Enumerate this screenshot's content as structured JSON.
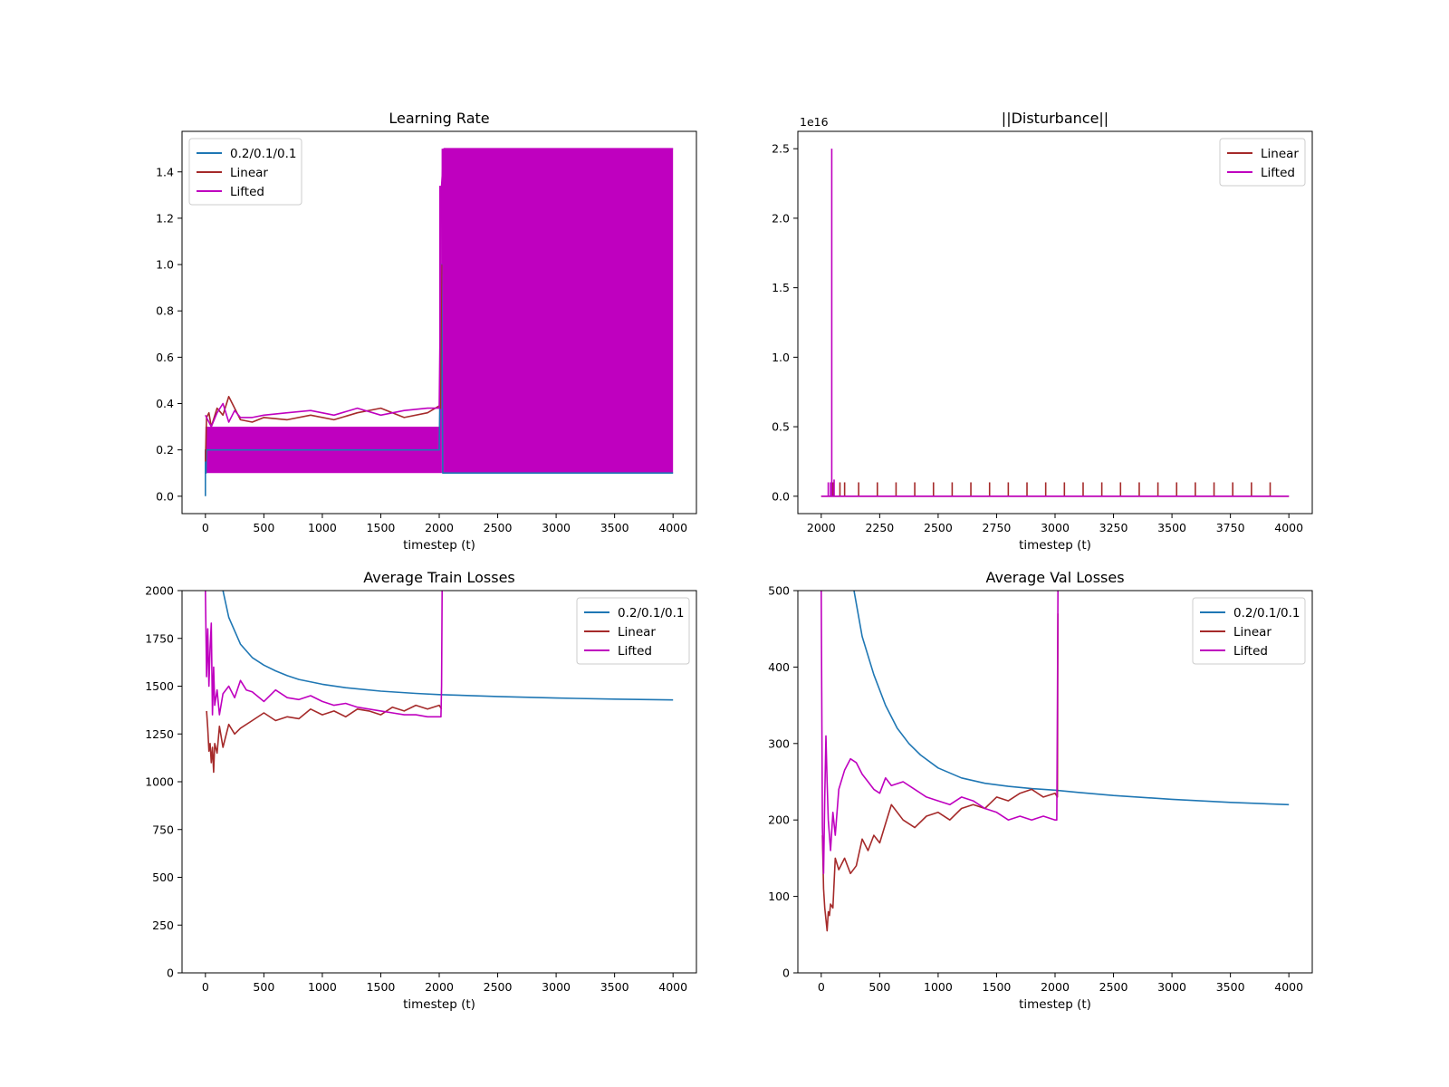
{
  "chart_data": [
    {
      "type": "line",
      "title": "Learning Rate",
      "xlabel": "timestep (t)",
      "ylabel": "",
      "xlim": [
        -200,
        4200
      ],
      "ylim": [
        -0.075,
        1.575
      ],
      "xticks": [
        "0",
        "500",
        "1000",
        "1500",
        "2000",
        "2500",
        "3000",
        "3500",
        "4000"
      ],
      "yticks": [
        "0.0",
        "0.2",
        "0.4",
        "0.6",
        "0.8",
        "1.0",
        "1.2",
        "1.4"
      ],
      "legend_position": "upper-left",
      "series": [
        {
          "name": "0.2/0.1/0.1",
          "color": "#1f77b4",
          "x": [
            0,
            0,
            5,
            10,
            2000,
            2020,
            2030,
            4000
          ],
          "y": [
            0.0,
            0.2,
            0.1,
            0.2,
            0.2,
            1.0,
            0.1,
            0.1
          ]
        },
        {
          "name": "Linear",
          "color": "#a52a2a",
          "x": [
            0,
            10,
            30,
            50,
            100,
            150,
            200,
            250,
            300,
            400,
            500,
            700,
            900,
            1100,
            1300,
            1500,
            1700,
            1900,
            2000,
            2010,
            2020
          ],
          "y": [
            0.15,
            0.34,
            0.36,
            0.3,
            0.38,
            0.35,
            0.43,
            0.38,
            0.33,
            0.32,
            0.34,
            0.33,
            0.35,
            0.33,
            0.36,
            0.38,
            0.34,
            0.36,
            0.39,
            0.38,
            1.0
          ]
        },
        {
          "name": "Lifted",
          "color": "#bf00bf",
          "x": [
            0,
            50,
            100,
            150,
            200,
            250,
            300,
            400,
            500,
            700,
            900,
            1100,
            1300,
            1500,
            1700,
            1900,
            2000,
            2020,
            2040,
            4000
          ],
          "y": [
            0.35,
            0.3,
            0.36,
            0.4,
            0.32,
            0.37,
            0.34,
            0.34,
            0.35,
            0.36,
            0.37,
            0.35,
            0.38,
            0.35,
            0.37,
            0.38,
            0.38,
            1.34,
            1.5,
            1.5
          ]
        }
      ],
      "band": {
        "series": "Lifted",
        "segments": [
          [
            0,
            2000,
            0.1,
            0.3
          ],
          [
            2000,
            2020,
            0.1,
            1.34
          ],
          [
            2020,
            4000,
            0.1,
            1.5
          ]
        ]
      }
    },
    {
      "type": "line",
      "title": "||Disturbance||",
      "xlabel": "timestep (t)",
      "ylabel": "",
      "offset_label": "1e16",
      "xlim": [
        1900,
        4100
      ],
      "ylim": [
        -0.125,
        2.625
      ],
      "xticks": [
        "2000",
        "2250",
        "2500",
        "2750",
        "3000",
        "3250",
        "3500",
        "3750",
        "4000"
      ],
      "yticks": [
        "0.0",
        "0.5",
        "1.0",
        "1.5",
        "2.0",
        "2.5"
      ],
      "legend_position": "upper-right",
      "series": [
        {
          "name": "Linear",
          "color": "#a52a2a",
          "x": [
            2000,
            4000
          ],
          "y": [
            0.0,
            0.0
          ],
          "spike_x": [
            2050,
            2080,
            2100,
            2160,
            2240,
            2320,
            2400,
            2480,
            2560,
            2640,
            2720,
            2800,
            2880,
            2960,
            3040,
            3120,
            3200,
            3280,
            3360,
            3440,
            3520,
            3600,
            3680,
            3760,
            3840,
            3920
          ],
          "spike_y": 0.1
        },
        {
          "name": "Lifted",
          "color": "#bf00bf",
          "x": [
            2000,
            4000
          ],
          "y": [
            0.0,
            0.0
          ],
          "spike_x": [
            2030,
            2040,
            2045,
            2055
          ],
          "spike_y": [
            0.1,
            0.1,
            2.5,
            0.12
          ]
        }
      ]
    },
    {
      "type": "line",
      "title": "Average Train Losses",
      "xlabel": "timestep (t)",
      "ylabel": "",
      "xlim": [
        -200,
        4200
      ],
      "ylim": [
        0,
        2000
      ],
      "xticks": [
        "0",
        "500",
        "1000",
        "1500",
        "2000",
        "2500",
        "3000",
        "3500",
        "4000"
      ],
      "yticks": [
        "0",
        "250",
        "500",
        "750",
        "1000",
        "1250",
        "1500",
        "1750",
        "2000"
      ],
      "legend_position": "upper-right",
      "series": [
        {
          "name": "0.2/0.1/0.1",
          "color": "#1f77b4",
          "x": [
            150,
            200,
            300,
            400,
            500,
            600,
            700,
            800,
            1000,
            1200,
            1500,
            1800,
            2000,
            2500,
            3000,
            3500,
            4000
          ],
          "y": [
            2000,
            1860,
            1720,
            1650,
            1610,
            1580,
            1555,
            1535,
            1510,
            1492,
            1474,
            1462,
            1456,
            1446,
            1438,
            1432,
            1428
          ]
        },
        {
          "name": "Linear",
          "color": "#a52a2a",
          "x": [
            10,
            20,
            30,
            40,
            50,
            60,
            70,
            80,
            100,
            120,
            150,
            200,
            250,
            300,
            400,
            500,
            600,
            700,
            800,
            900,
            1000,
            1100,
            1200,
            1300,
            1400,
            1500,
            1600,
            1700,
            1800,
            1900,
            2000,
            2020
          ],
          "y": [
            1370,
            1280,
            1160,
            1200,
            1100,
            1180,
            1050,
            1200,
            1150,
            1290,
            1180,
            1300,
            1250,
            1280,
            1320,
            1360,
            1320,
            1340,
            1330,
            1380,
            1350,
            1370,
            1340,
            1380,
            1370,
            1350,
            1390,
            1370,
            1400,
            1380,
            1400,
            1380
          ]
        },
        {
          "name": "Lifted",
          "color": "#bf00bf",
          "x": [
            0,
            10,
            20,
            30,
            40,
            50,
            60,
            70,
            80,
            100,
            120,
            150,
            200,
            250,
            300,
            350,
            400,
            500,
            600,
            700,
            800,
            900,
            1000,
            1100,
            1200,
            1300,
            1400,
            1500,
            1600,
            1700,
            1800,
            1900,
            2000,
            2015,
            2020,
            2025
          ],
          "y": [
            2000,
            1550,
            1800,
            1500,
            1700,
            1830,
            1350,
            1600,
            1400,
            1480,
            1350,
            1460,
            1500,
            1440,
            1530,
            1480,
            1470,
            1420,
            1480,
            1440,
            1430,
            1450,
            1420,
            1400,
            1410,
            1390,
            1380,
            1370,
            1360,
            1350,
            1350,
            1340,
            1340,
            1340,
            1500,
            2000
          ]
        }
      ]
    },
    {
      "type": "line",
      "title": "Average Val Losses",
      "xlabel": "timestep (t)",
      "ylabel": "",
      "xlim": [
        -200,
        4200
      ],
      "ylim": [
        0,
        500
      ],
      "xticks": [
        "0",
        "500",
        "1000",
        "1500",
        "2000",
        "2500",
        "3000",
        "3500",
        "4000"
      ],
      "yticks": [
        "0",
        "100",
        "200",
        "300",
        "400",
        "500"
      ],
      "legend_position": "upper-right",
      "series": [
        {
          "name": "0.2/0.1/0.1",
          "color": "#1f77b4",
          "x": [
            280,
            350,
            450,
            550,
            650,
            750,
            850,
            1000,
            1200,
            1400,
            1600,
            1800,
            2000,
            2200,
            2500,
            3000,
            3500,
            4000
          ],
          "y": [
            500,
            440,
            390,
            350,
            320,
            300,
            285,
            268,
            255,
            248,
            244,
            241,
            239,
            236,
            232,
            227,
            223,
            220
          ]
        },
        {
          "name": "Linear",
          "color": "#a52a2a",
          "x": [
            10,
            20,
            30,
            40,
            50,
            60,
            70,
            80,
            100,
            120,
            150,
            200,
            250,
            300,
            350,
            400,
            450,
            500,
            550,
            600,
            700,
            800,
            900,
            1000,
            1100,
            1200,
            1300,
            1400,
            1500,
            1600,
            1700,
            1800,
            1900,
            2000,
            2020,
            2025
          ],
          "y": [
            180,
            110,
            85,
            70,
            55,
            80,
            75,
            90,
            85,
            150,
            135,
            150,
            130,
            140,
            175,
            160,
            180,
            170,
            195,
            220,
            200,
            190,
            205,
            210,
            200,
            215,
            220,
            215,
            230,
            225,
            235,
            240,
            230,
            235,
            230,
            470
          ]
        },
        {
          "name": "Lifted",
          "color": "#bf00bf",
          "x": [
            0,
            10,
            20,
            30,
            40,
            50,
            60,
            80,
            100,
            120,
            150,
            200,
            250,
            300,
            350,
            400,
            450,
            500,
            550,
            600,
            700,
            800,
            900,
            1000,
            1100,
            1200,
            1300,
            1400,
            1500,
            1600,
            1700,
            1800,
            1900,
            2000,
            2015,
            2020,
            2025
          ],
          "y": [
            500,
            190,
            130,
            230,
            310,
            250,
            200,
            160,
            210,
            180,
            240,
            265,
            280,
            275,
            260,
            250,
            240,
            235,
            255,
            245,
            250,
            240,
            230,
            225,
            220,
            230,
            225,
            215,
            210,
            200,
            205,
            200,
            205,
            200,
            200,
            350,
            500
          ]
        }
      ]
    }
  ]
}
